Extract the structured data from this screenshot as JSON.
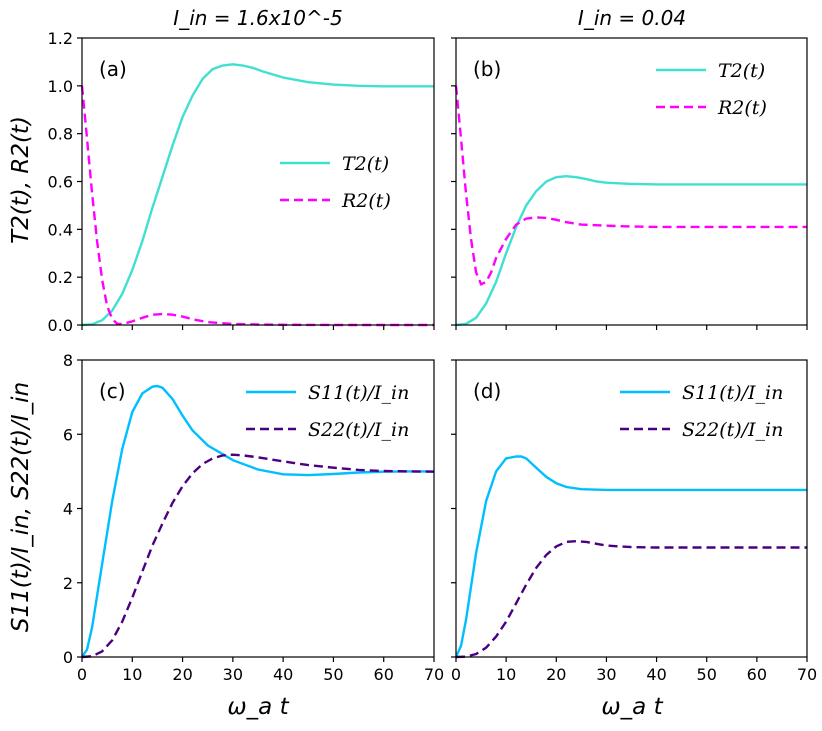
{
  "figure": {
    "col_titles": [
      "I_in = 1.6x10^-5",
      "I_in = 0.04"
    ],
    "top_ylabel": "T2(t), R2(t)",
    "bottom_ylabel": "S11(t)/I_in, S22(t)/I_in",
    "xlabel": "ω_a t"
  },
  "chart_data": [
    {
      "type": "line",
      "panel": "(a)",
      "title": "I_in = 1.6x10^-5",
      "xlabel": "",
      "ylabel": "T2(t), R2(t)",
      "xlim": [
        0,
        70
      ],
      "ylim": [
        0.0,
        1.2
      ],
      "yticks": [
        0.0,
        0.2,
        0.4,
        0.6,
        0.8,
        1.0,
        1.2
      ],
      "ytick_labels": [
        "0.0",
        "0.2",
        "0.4",
        "0.6",
        "0.8",
        "1.0",
        "1.2"
      ],
      "xticks": [
        0,
        10,
        20,
        30,
        40,
        50,
        60,
        70
      ],
      "show_xtick_labels": false,
      "show_ytick_labels": true,
      "legend_position": "middle-right",
      "series": [
        {
          "name": "T2(t)",
          "color": "#40e0d0",
          "dash": "solid",
          "x": [
            0,
            2,
            4,
            6,
            8,
            10,
            12,
            14,
            16,
            18,
            20,
            22,
            24,
            26,
            28,
            30,
            32,
            34,
            36,
            40,
            45,
            50,
            55,
            60,
            65,
            70
          ],
          "y": [
            0.0,
            0.003,
            0.02,
            0.06,
            0.13,
            0.23,
            0.35,
            0.49,
            0.62,
            0.75,
            0.87,
            0.96,
            1.03,
            1.07,
            1.085,
            1.09,
            1.085,
            1.075,
            1.06,
            1.035,
            1.015,
            1.005,
            1.0,
            0.998,
            0.998,
            0.998
          ]
        },
        {
          "name": "R2(t)",
          "color": "#ff00ff",
          "dash": "dashed",
          "x": [
            0,
            1,
            2,
            3,
            4,
            5,
            6,
            7,
            8,
            10,
            12,
            14,
            16,
            18,
            20,
            22,
            25,
            30,
            35,
            40,
            50,
            60,
            70
          ],
          "y": [
            1.0,
            0.78,
            0.55,
            0.35,
            0.19,
            0.08,
            0.025,
            0.005,
            0.004,
            0.015,
            0.03,
            0.043,
            0.046,
            0.043,
            0.035,
            0.024,
            0.012,
            0.004,
            0.002,
            0.001,
            0.0,
            0.0,
            0.0
          ]
        }
      ]
    },
    {
      "type": "line",
      "panel": "(b)",
      "title": "I_in = 0.04",
      "xlabel": "",
      "ylabel": "",
      "xlim": [
        0,
        70
      ],
      "ylim": [
        0.0,
        1.2
      ],
      "yticks": [
        0.0,
        0.2,
        0.4,
        0.6,
        0.8,
        1.0,
        1.2
      ],
      "ytick_labels": [
        "0.0",
        "0.2",
        "0.4",
        "0.6",
        "0.8",
        "1.0",
        "1.2"
      ],
      "xticks": [
        0,
        10,
        20,
        30,
        40,
        50,
        60,
        70
      ],
      "show_xtick_labels": false,
      "show_ytick_labels": false,
      "legend_position": "top-right",
      "series": [
        {
          "name": "T2(t)",
          "color": "#40e0d0",
          "dash": "solid",
          "x": [
            0,
            2,
            4,
            6,
            8,
            10,
            12,
            14,
            16,
            18,
            20,
            22,
            24,
            26,
            28,
            30,
            35,
            40,
            50,
            60,
            70
          ],
          "y": [
            0.0,
            0.005,
            0.03,
            0.09,
            0.18,
            0.3,
            0.41,
            0.5,
            0.56,
            0.6,
            0.618,
            0.622,
            0.618,
            0.61,
            0.6,
            0.595,
            0.59,
            0.588,
            0.588,
            0.588,
            0.588
          ]
        },
        {
          "name": "R2(t)",
          "color": "#ff00ff",
          "dash": "dashed",
          "x": [
            0,
            1,
            2,
            3,
            4,
            5,
            6,
            7,
            8,
            10,
            12,
            14,
            16,
            18,
            20,
            22,
            25,
            30,
            35,
            40,
            50,
            60,
            70
          ],
          "y": [
            1.0,
            0.78,
            0.55,
            0.36,
            0.22,
            0.17,
            0.18,
            0.22,
            0.28,
            0.36,
            0.42,
            0.445,
            0.45,
            0.448,
            0.44,
            0.43,
            0.42,
            0.415,
            0.412,
            0.41,
            0.41,
            0.41,
            0.41
          ]
        }
      ]
    },
    {
      "type": "line",
      "panel": "(c)",
      "title": "",
      "xlabel": "ω_a t",
      "ylabel": "S11(t)/I_in, S22(t)/I_in",
      "xlim": [
        0,
        70
      ],
      "ylim": [
        0,
        8
      ],
      "yticks": [
        0,
        2,
        4,
        6,
        8
      ],
      "ytick_labels": [
        "0",
        "2",
        "4",
        "6",
        "8"
      ],
      "xticks": [
        0,
        10,
        20,
        30,
        40,
        50,
        60,
        70
      ],
      "xtick_labels": [
        "0",
        "10",
        "20",
        "30",
        "40",
        "50",
        "60",
        "70"
      ],
      "show_xtick_labels": true,
      "show_ytick_labels": true,
      "legend_position": "top-right",
      "series": [
        {
          "name": "S11(t)/I_in",
          "color": "#00bfff",
          "dash": "solid",
          "x": [
            0,
            1,
            2,
            4,
            6,
            8,
            10,
            12,
            14,
            15,
            16,
            18,
            20,
            22,
            25,
            30,
            35,
            40,
            45,
            50,
            55,
            60,
            65,
            70
          ],
          "y": [
            0.0,
            0.2,
            0.8,
            2.5,
            4.2,
            5.6,
            6.6,
            7.1,
            7.28,
            7.3,
            7.25,
            6.95,
            6.5,
            6.1,
            5.7,
            5.3,
            5.05,
            4.92,
            4.9,
            4.93,
            4.97,
            4.99,
            5.0,
            5.0
          ]
        },
        {
          "name": "S22(t)/I_in",
          "color": "#4b0082",
          "dash": "dashed",
          "x": [
            0,
            2,
            4,
            6,
            8,
            10,
            12,
            14,
            16,
            18,
            20,
            22,
            24,
            26,
            28,
            30,
            32,
            35,
            40,
            45,
            50,
            55,
            60,
            65,
            70
          ],
          "y": [
            0.0,
            0.02,
            0.15,
            0.45,
            0.95,
            1.6,
            2.3,
            3.0,
            3.6,
            4.15,
            4.6,
            4.95,
            5.2,
            5.35,
            5.43,
            5.45,
            5.43,
            5.38,
            5.27,
            5.17,
            5.1,
            5.04,
            5.01,
            5.0,
            4.99
          ]
        }
      ]
    },
    {
      "type": "line",
      "panel": "(d)",
      "title": "",
      "xlabel": "ω_a t",
      "ylabel": "",
      "xlim": [
        0,
        70
      ],
      "ylim": [
        0,
        8
      ],
      "yticks": [
        0,
        2,
        4,
        6,
        8
      ],
      "ytick_labels": [
        "0",
        "2",
        "4",
        "6",
        "8"
      ],
      "xticks": [
        0,
        10,
        20,
        30,
        40,
        50,
        60,
        70
      ],
      "xtick_labels": [
        "0",
        "10",
        "20",
        "30",
        "40",
        "50",
        "60",
        "70"
      ],
      "show_xtick_labels": true,
      "show_ytick_labels": false,
      "legend_position": "top-right",
      "series": [
        {
          "name": "S11(t)/I_in",
          "color": "#00bfff",
          "dash": "solid",
          "x": [
            0,
            1,
            2,
            4,
            6,
            8,
            10,
            12,
            13,
            14,
            16,
            18,
            20,
            22,
            25,
            30,
            35,
            40,
            50,
            60,
            70
          ],
          "y": [
            0.0,
            0.3,
            1.0,
            2.8,
            4.2,
            5.0,
            5.35,
            5.4,
            5.4,
            5.35,
            5.1,
            4.85,
            4.68,
            4.58,
            4.52,
            4.5,
            4.5,
            4.5,
            4.5,
            4.5,
            4.5
          ]
        },
        {
          "name": "S22(t)/I_in",
          "color": "#4b0082",
          "dash": "dashed",
          "x": [
            0,
            2,
            4,
            6,
            8,
            10,
            12,
            14,
            16,
            18,
            20,
            22,
            24,
            26,
            28,
            30,
            35,
            40,
            50,
            60,
            70
          ],
          "y": [
            0.0,
            0.01,
            0.08,
            0.25,
            0.55,
            0.95,
            1.45,
            1.95,
            2.4,
            2.75,
            2.98,
            3.1,
            3.12,
            3.1,
            3.05,
            3.0,
            2.96,
            2.95,
            2.95,
            2.95,
            2.95
          ]
        }
      ]
    }
  ]
}
